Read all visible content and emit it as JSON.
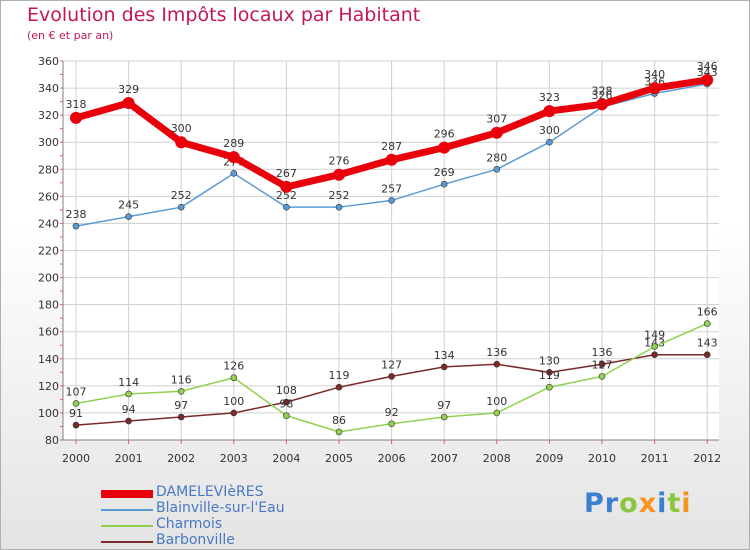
{
  "header": {
    "title": "Evolution des Impôts locaux par Habitant",
    "subtitle": "(en € et par an)"
  },
  "logo": {
    "text": "Proxiti",
    "letters": [
      {
        "ch": "P",
        "color": "#3a7fd0"
      },
      {
        "ch": "r",
        "color": "#3a7fd0"
      },
      {
        "ch": "o",
        "color": "#8cc63f"
      },
      {
        "ch": "x",
        "color": "#f7941d"
      },
      {
        "ch": "i",
        "color": "#3a7fd0"
      },
      {
        "ch": "t",
        "color": "#8cc63f"
      },
      {
        "ch": "i",
        "color": "#f7941d"
      }
    ]
  },
  "chart_data": {
    "type": "line",
    "title": "Evolution des Impôts locaux par Habitant",
    "subtitle": "(en € et par an)",
    "x": [
      "2000",
      "2001",
      "2002",
      "2003",
      "2004",
      "2005",
      "2006",
      "2007",
      "2008",
      "2009",
      "2010",
      "2011",
      "2012"
    ],
    "ylim": [
      80,
      360
    ],
    "yticks": [
      80,
      100,
      120,
      140,
      160,
      180,
      200,
      220,
      240,
      260,
      280,
      300,
      320,
      340,
      360
    ],
    "grid": true,
    "legend_position": "bottom-left",
    "series": [
      {
        "name": "DAMELEVIèRES",
        "color": "#e8000b",
        "values": [
          318,
          329,
          300,
          289,
          267,
          276,
          287,
          296,
          307,
          323,
          328,
          340,
          346
        ]
      },
      {
        "name": "Blainville-sur-l'Eau",
        "color": "#5b9bd5",
        "values": [
          238,
          245,
          252,
          277,
          252,
          252,
          257,
          269,
          280,
          300,
          326,
          336,
          343
        ]
      },
      {
        "name": "Charmois",
        "color": "#92d050",
        "values": [
          107,
          114,
          116,
          126,
          98,
          86,
          92,
          97,
          100,
          119,
          127,
          149,
          166
        ]
      },
      {
        "name": "Barbonville",
        "color": "#7b2a2a",
        "values": [
          91,
          94,
          97,
          100,
          108,
          119,
          127,
          134,
          136,
          130,
          136,
          143,
          143
        ]
      }
    ]
  }
}
